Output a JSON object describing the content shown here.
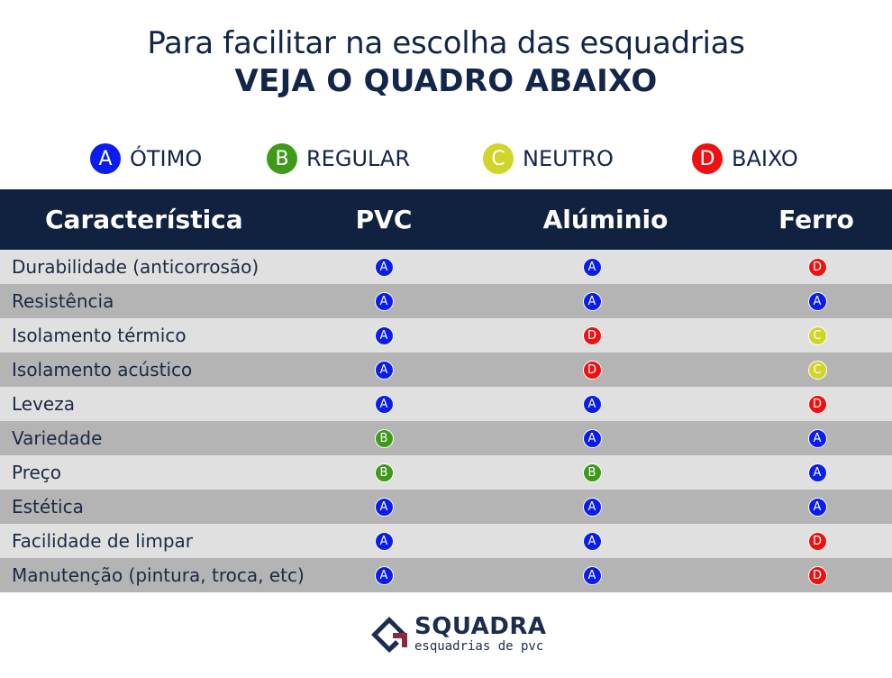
{
  "title": {
    "line1": "Para facilitar na escolha das esquadrias",
    "line2": "VEJA O QUADRO ABAIXO"
  },
  "legend": [
    {
      "letter": "A",
      "label": "ÓTIMO",
      "color": "#0a1cf0"
    },
    {
      "letter": "B",
      "label": "REGULAR",
      "color": "#3f9a1a"
    },
    {
      "letter": "C",
      "label": "NEUTRO",
      "color": "#cfd52a"
    },
    {
      "letter": "D",
      "label": "BAIXO",
      "color": "#ee1111"
    }
  ],
  "table": {
    "headers": [
      "Característica",
      "PVC",
      "Alúminio",
      "Ferro"
    ],
    "rows": [
      {
        "label": "Durabilidade (anticorrosão)",
        "ratings": [
          "A",
          "A",
          "D"
        ]
      },
      {
        "label": "Resistência",
        "ratings": [
          "A",
          "A",
          "A"
        ]
      },
      {
        "label": "Isolamento térmico",
        "ratings": [
          "A",
          "D",
          "C"
        ]
      },
      {
        "label": "Isolamento acústico",
        "ratings": [
          "A",
          "D",
          "C"
        ]
      },
      {
        "label": "Leveza",
        "ratings": [
          "A",
          "A",
          "D"
        ]
      },
      {
        "label": "Variedade",
        "ratings": [
          "B",
          "A",
          "A"
        ]
      },
      {
        "label": "Preço",
        "ratings": [
          "B",
          "B",
          "A"
        ]
      },
      {
        "label": "Estética",
        "ratings": [
          "A",
          "A",
          "A"
        ]
      },
      {
        "label": "Facilidade de limpar",
        "ratings": [
          "A",
          "A",
          "D"
        ]
      },
      {
        "label": "Manutenção (pintura, troca, etc)",
        "ratings": [
          "A",
          "A",
          "D"
        ]
      }
    ]
  },
  "logo": {
    "name": "SQUADRA",
    "tagline": "esquadrias de pvc",
    "colors": {
      "navy": "#1c2d4d",
      "maroon": "#8a2a3a"
    }
  }
}
